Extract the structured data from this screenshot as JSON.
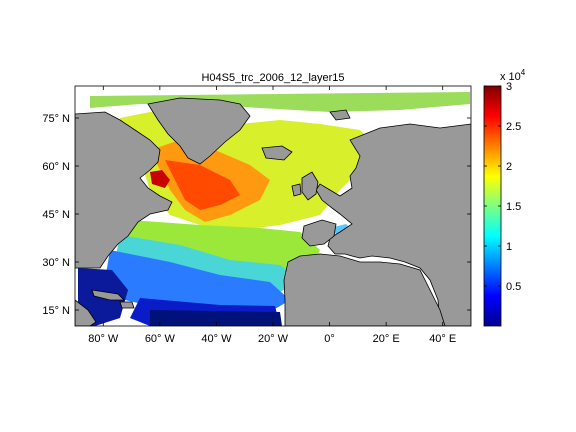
{
  "figure": {
    "title": "H04S5_trc_2006_12_layer15"
  },
  "map": {
    "lon_range": [
      -90,
      50
    ],
    "lat_range": [
      10,
      85
    ],
    "lon_ticks": [
      {
        "value": -80,
        "label": "80° W"
      },
      {
        "value": -60,
        "label": "60° W"
      },
      {
        "value": -40,
        "label": "40° W"
      },
      {
        "value": -20,
        "label": "20° W"
      },
      {
        "value": 0,
        "label": "0°"
      },
      {
        "value": 20,
        "label": "20° E"
      },
      {
        "value": 40,
        "label": "40° E"
      }
    ],
    "lat_ticks": [
      {
        "value": 15,
        "label": "15° N"
      },
      {
        "value": 30,
        "label": "30° N"
      },
      {
        "value": 45,
        "label": "45° N"
      },
      {
        "value": 60,
        "label": "60° N"
      },
      {
        "value": 75,
        "label": "75° N"
      }
    ],
    "land_color": "#999999",
    "coast_color": "#000000"
  },
  "colorbar": {
    "exponent_label": "x 10",
    "exponent_power": "4",
    "range": [
      0,
      30000
    ],
    "ticks": [
      {
        "value": 5000,
        "label": "0.5"
      },
      {
        "value": 10000,
        "label": "1"
      },
      {
        "value": 15000,
        "label": "1.5"
      },
      {
        "value": 20000,
        "label": "2"
      },
      {
        "value": 25000,
        "label": "2.5"
      },
      {
        "value": 30000,
        "label": "3"
      }
    ],
    "colormap": "jet"
  }
}
